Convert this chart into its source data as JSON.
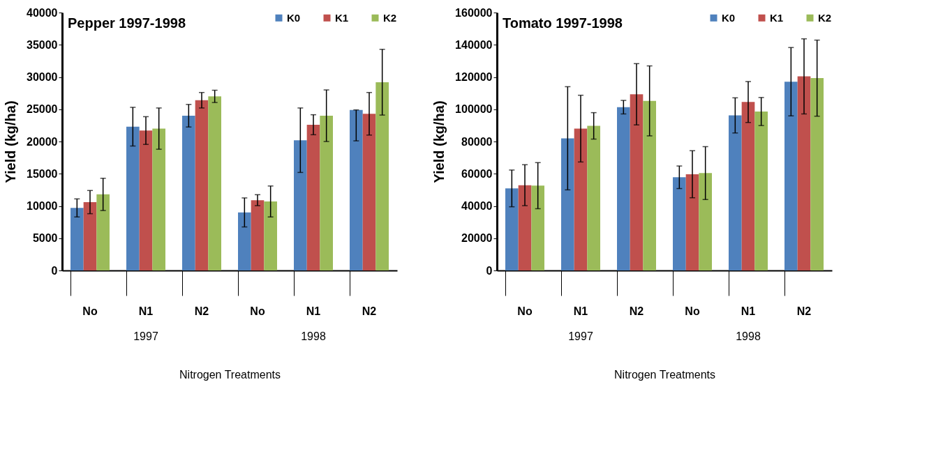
{
  "chart_data": [
    {
      "type": "bar",
      "title": "Pepper 1997-1998",
      "xlabel": "Nitrogen Treatments",
      "ylabel": "Yield (kg/ha)",
      "categories": [
        "No",
        "N1",
        "N2",
        "No",
        "N1",
        "N2"
      ],
      "annotations": [
        "1997",
        "1998"
      ],
      "ylim": [
        0,
        40000
      ],
      "yticks": [
        0,
        5000,
        10000,
        15000,
        20000,
        25000,
        30000,
        35000,
        40000
      ],
      "grid": false,
      "legend": "top right",
      "series": [
        {
          "name": "K0",
          "color": "#4f81bd",
          "values": [
            9700,
            22300,
            24000,
            9000,
            20200,
            24900
          ],
          "errors": [
            1400,
            3000,
            1750,
            2250,
            5000,
            [
              20100,
              24900
            ]
          ]
        },
        {
          "name": "K1",
          "color": "#c0504d",
          "values": [
            10600,
            21700,
            26400,
            10900,
            22600,
            24300
          ],
          "errors": [
            1800,
            2150,
            1200,
            850,
            1550,
            3300
          ]
        },
        {
          "name": "K2",
          "color": "#9bbb59",
          "values": [
            11800,
            22000,
            27000,
            10700,
            24000,
            29200
          ],
          "errors": [
            2500,
            3200,
            950,
            2400,
            4000,
            5100
          ]
        }
      ]
    },
    {
      "type": "bar",
      "title": "Tomato 1997-1998",
      "xlabel": "Nitrogen Treatments",
      "ylabel": "Yield (kg/ha)",
      "categories": [
        "No",
        "N1",
        "N2",
        "No",
        "N1",
        "N2"
      ],
      "annotations": [
        "1997",
        "1998"
      ],
      "ylim": [
        0,
        160000
      ],
      "yticks": [
        0,
        20000,
        40000,
        60000,
        80000,
        100000,
        120000,
        140000,
        160000
      ],
      "grid": false,
      "legend": "top right",
      "series": [
        {
          "name": "K0",
          "color": "#4f81bd",
          "values": [
            50900,
            82000,
            101300,
            57800,
            96200,
            117100
          ],
          "errors": [
            11400,
            32000,
            4200,
            7000,
            10900,
            21200
          ]
        },
        {
          "name": "K1",
          "color": "#c0504d",
          "values": [
            52900,
            88000,
            109300,
            59700,
            104500,
            120400
          ],
          "errors": [
            12700,
            20700,
            19000,
            14600,
            12700,
            23300
          ]
        },
        {
          "name": "K2",
          "color": "#9bbb59",
          "values": [
            52600,
            89700,
            105200,
            60400,
            98600,
            119300
          ],
          "errors": [
            14300,
            8200,
            21700,
            16400,
            8700,
            23600
          ]
        }
      ]
    }
  ]
}
